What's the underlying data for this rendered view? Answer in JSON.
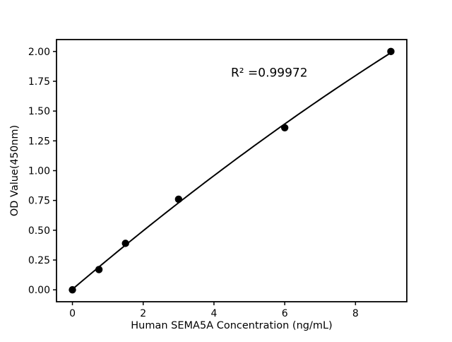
{
  "figure": {
    "background": "#ffffff"
  },
  "chart_data": {
    "type": "scatter",
    "title": "",
    "xlabel": "Human SEMA5A Concentration (ng/mL)",
    "ylabel": "OD Value(450nm)",
    "annotation": {
      "text": "R² =0.99972",
      "x": 4.48,
      "y": 1.79
    },
    "r_squared": 0.99972,
    "points": {
      "x": [
        0,
        0.75,
        1.5,
        3,
        6,
        9
      ],
      "y": [
        0.0,
        0.17,
        0.39,
        0.76,
        1.36,
        2.0
      ]
    },
    "fit_curve": {
      "type": "quadratic",
      "coeffs": [
        0.0046,
        0.2525,
        -0.00355
      ],
      "x_domain": [
        0,
        9
      ]
    },
    "xlim": [
      -0.45,
      9.45
    ],
    "ylim": [
      -0.1,
      2.1
    ],
    "xticks": {
      "values": [
        0,
        2,
        4,
        6,
        8
      ],
      "labels": [
        "0",
        "2",
        "4",
        "6",
        "8"
      ]
    },
    "yticks": {
      "values": [
        0.0,
        0.25,
        0.5,
        0.75,
        1.0,
        1.25,
        1.5,
        1.75,
        2.0
      ],
      "labels": [
        "0.00",
        "0.25",
        "0.50",
        "0.75",
        "1.00",
        "1.25",
        "1.50",
        "1.75",
        "2.00"
      ]
    },
    "grid": false,
    "legend": null,
    "marker": "circle",
    "colors": {
      "marker": "#000000",
      "line": "#000000",
      "axes": "#000000",
      "text": "#000000",
      "background": "#ffffff"
    }
  }
}
